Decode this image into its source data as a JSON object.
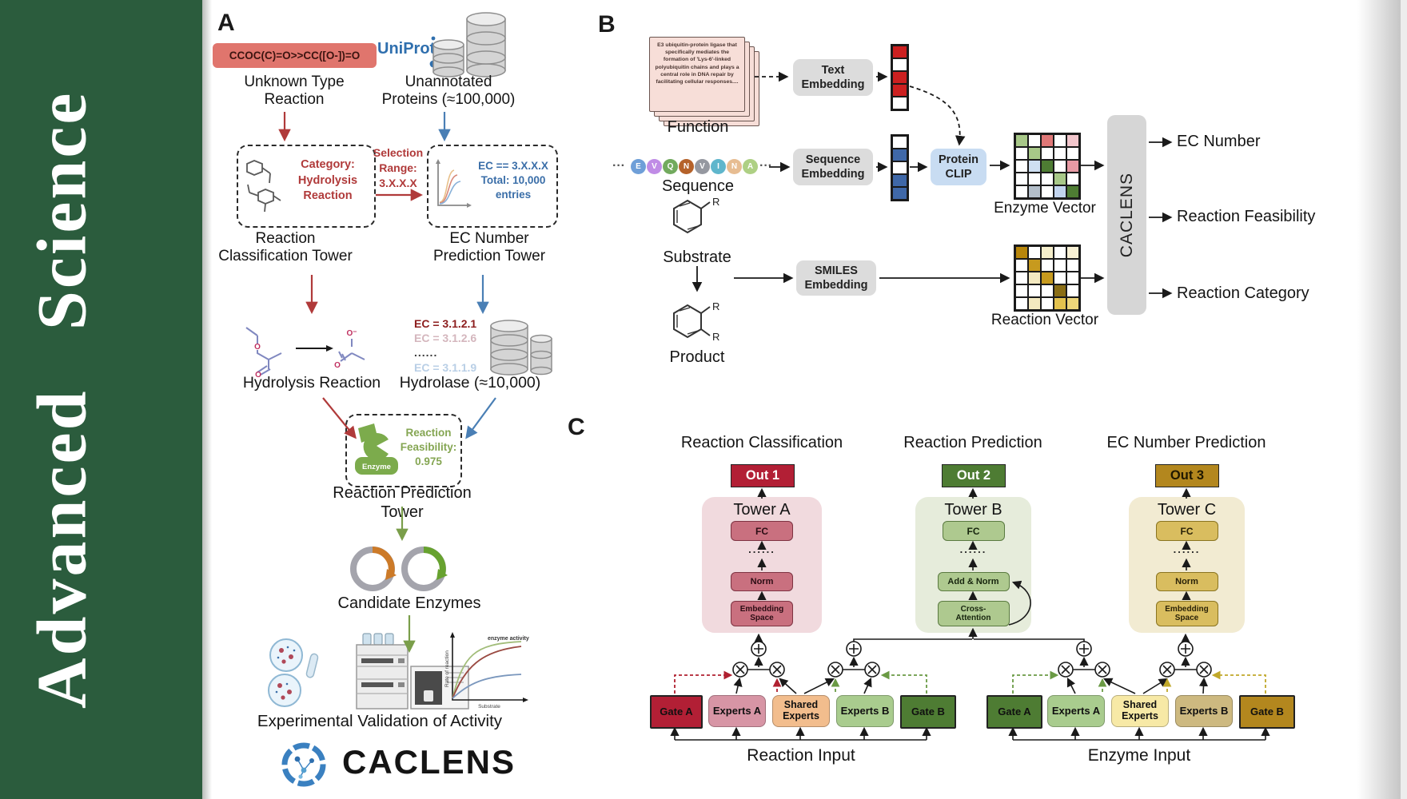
{
  "brand": {
    "journal": "Advanced Science",
    "sidebar_green": "#2b5c3d"
  },
  "panelA": {
    "label": "A",
    "smiles": "CCOC(C)=O>>CC([O-])=O",
    "unknown": "Unknown Type\nReaction",
    "uniprot": "UniProt",
    "unannotated": "Unannotated\nProteins (≈100,000)",
    "category": "Category:\nHydrolysis\nReaction",
    "selection": "Selection\nRange:\n3.X.X.X",
    "ec_box": "EC == 3.X.X.X\nTotal: 10,000\nentries",
    "tower_classification": "Reaction\nClassification Tower",
    "tower_ec": "EC Number\nPrediction Tower",
    "ec_list": [
      "EC = 3.1.2.1",
      "EC = 3.1.2.6",
      "......",
      "EC = 3.1.1.9"
    ],
    "hydrolysis": "Hydrolysis Reaction",
    "hydrolase": "Hydrolase (≈10,000)",
    "enzyme": "Enzyme",
    "feasibility": "Reaction\nFeasibility:\n0.975",
    "tower_prediction": "Reaction Prediction Tower",
    "candidates": "Candidate Enzymes",
    "plot": {
      "ylabel": "Rate of reaction",
      "xlabel": "Substrate",
      "annotation": "enzyme activity"
    },
    "validation": "Experimental Validation of Activity",
    "logo_text": "CACLENS"
  },
  "panelB": {
    "label": "B",
    "function_text": "E3 ubiquitin-protein ligase that specifically mediates the formation of 'Lys-6'-linked polyubiquitin chains and plays a central role in DNA repair by facilitating cellular responses....",
    "function_label": "Function",
    "sequence_label": "Sequence",
    "substrate_label": "Substrate",
    "product_label": "Product",
    "r": "R",
    "dots": "···",
    "residues": [
      {
        "l": "E",
        "c": "#6f9fd8"
      },
      {
        "l": "V",
        "c": "#c08ce6"
      },
      {
        "l": "Q",
        "c": "#72aa5e"
      },
      {
        "l": "N",
        "c": "#b5622a"
      },
      {
        "l": "V",
        "c": "#9598a0"
      },
      {
        "l": "I",
        "c": "#5fb6cc"
      },
      {
        "l": "N",
        "c": "#e7bd92"
      },
      {
        "l": "A",
        "c": "#aed084"
      }
    ],
    "text_embedding": "Text\nEmbedding",
    "sequence_embedding": "Sequence\nEmbedding",
    "smiles_embedding": "SMILES\nEmbedding",
    "protein_clip": "Protein\nCLIP",
    "enzyme_vector_label": "Enzyme Vector",
    "reaction_vector_label": "Reaction Vector",
    "caclens": "CACLENS",
    "outputs": [
      "EC Number",
      "Reaction Feasibility",
      "Reaction Category"
    ],
    "text_vector": [
      "#cc2020",
      "#ffffff",
      "#cc2020",
      "#cc2020",
      "#ffffff"
    ],
    "sequence_vector": [
      "#ffffff",
      "#3f68a8",
      "#ffffff",
      "#3f68a8",
      "#3f68a8"
    ],
    "enzyme_matrix": [
      [
        "#a8c888",
        "#ffffff",
        "#e07878",
        "#ffffff",
        "#f2c6cc"
      ],
      [
        "#ffffff",
        "#a8c888",
        "#ffffff",
        "#ffffff",
        "#ffffff"
      ],
      [
        "#ffffff",
        "#cfe0f2",
        "#4e7c33",
        "#ffffff",
        "#e89aa4"
      ],
      [
        "#ffffff",
        "#ffffff",
        "#ffffff",
        "#a8c888",
        "#ffffff"
      ],
      [
        "#ffffff",
        "#b4bfca",
        "#ffffff",
        "#c2d4ee",
        "#4e7c33"
      ]
    ],
    "reaction_matrix": [
      [
        "#b8860b",
        "#ffffff",
        "#f5eecb",
        "#ffffff",
        "#f7f0d4"
      ],
      [
        "#ffffff",
        "#c79a1e",
        "#ffffff",
        "#ffffff",
        "#ffffff"
      ],
      [
        "#ffffff",
        "#f3e9c0",
        "#c79a1e",
        "#ffffff",
        "#ffffff"
      ],
      [
        "#ffffff",
        "#ffffff",
        "#ffffff",
        "#8a6d14",
        "#ffffff"
      ],
      [
        "#ffffff",
        "#f3e9c0",
        "#ffffff",
        "#e3c24e",
        "#edd67a"
      ]
    ]
  },
  "panelC": {
    "label": "C",
    "headers": [
      "Reaction Classification",
      "Reaction Prediction",
      "EC Number Prediction"
    ],
    "outs": [
      "Out 1",
      "Out 2",
      "Out 3"
    ],
    "out_colors": [
      "#b21f35",
      "#4e7c33",
      "#b3871e"
    ],
    "towers": [
      {
        "title": "Tower A",
        "fc": "FC",
        "dots": "......",
        "mid": "Norm",
        "bottom": "Embedding\nSpace"
      },
      {
        "title": "Tower B",
        "fc": "FC",
        "dots": "......",
        "mid": "Add & Norm",
        "bottom": "Cross-\nAttention"
      },
      {
        "title": "Tower C",
        "fc": "FC",
        "dots": "......",
        "mid": "Norm",
        "bottom": "Embedding\nSpace"
      }
    ],
    "moe_reaction": {
      "boxes": [
        "Gate A",
        "Experts A",
        "Shared\nExperts",
        "Experts B",
        "Gate B"
      ],
      "input": "Reaction Input"
    },
    "moe_enzyme": {
      "boxes": [
        "Gate A",
        "Experts A",
        "Shared\nExperts",
        "Experts B",
        "Gate B"
      ],
      "input": "Enzyme Input"
    }
  }
}
